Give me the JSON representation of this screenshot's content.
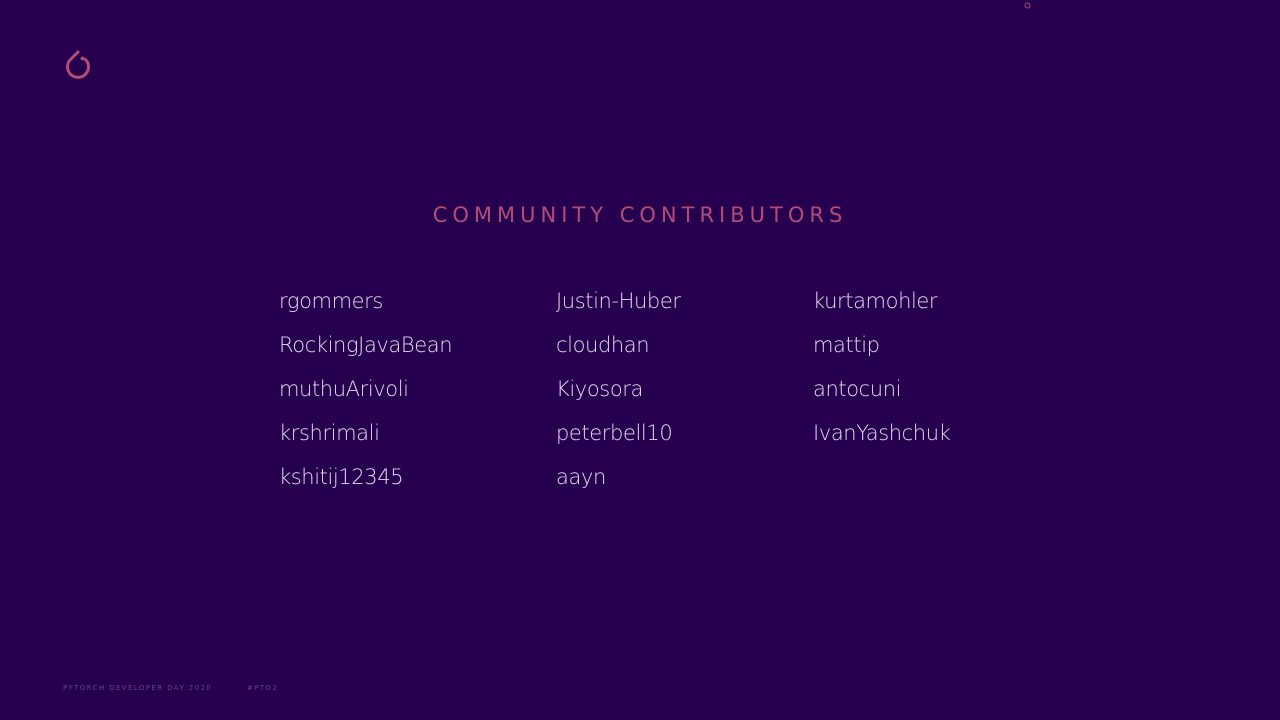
{
  "slide": {
    "title": "COMMUNITY CONTRIBUTORS",
    "columns": [
      [
        "rgommers",
        "RockingJavaBean",
        "muthuArivoli",
        "krshrimali",
        "kshitij12345"
      ],
      [
        "Justin-Huber",
        "cloudhan",
        "Kiyosora",
        "peterbell10",
        "aayn"
      ],
      [
        "kurtamohler",
        "mattip",
        "antocuni",
        "IvanYashchuk"
      ]
    ]
  },
  "footer": {
    "event": "PYTORCH DEVELOPER DAY 2020",
    "hashtag": "#PTD2"
  },
  "icons": {
    "logo": "pytorch-flame-icon",
    "corner": "circle-outline-icon"
  },
  "colors": {
    "background": "#26004f",
    "accent": "#b24d78",
    "text": "#e3d8ee",
    "footer": "#6a3f8a"
  }
}
